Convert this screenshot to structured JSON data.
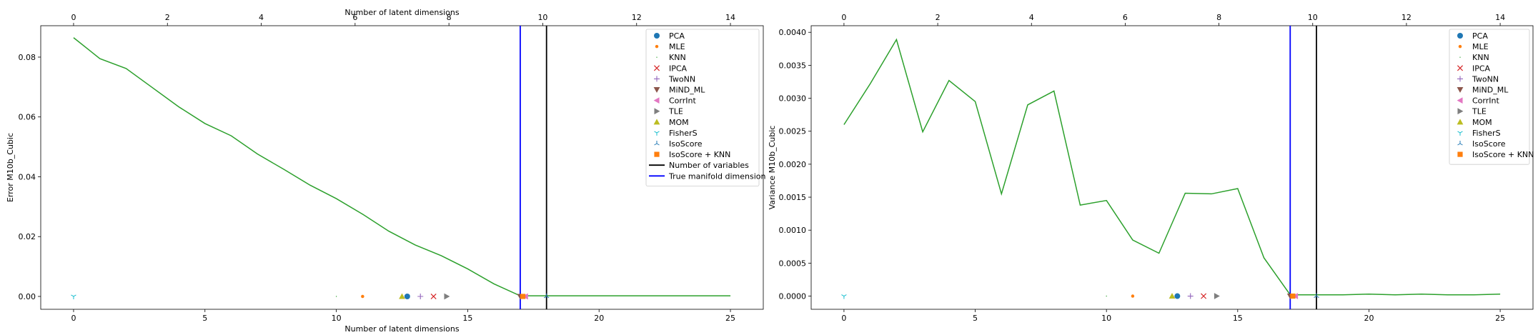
{
  "chart_data": [
    {
      "type": "line",
      "title": "",
      "xlabel": "Number of latent dimensions",
      "top_xlabel": "Number of latent dimensions",
      "ylabel": "Error M10b_Cubic",
      "xlim": [
        -1.25,
        26.25
      ],
      "ylim": [
        -0.0043,
        0.0905
      ],
      "top_xlim": [
        -0.7,
        14.7
      ],
      "x_ticks": [
        0,
        5,
        10,
        15,
        20,
        25
      ],
      "top_x_ticks": [
        0,
        2,
        4,
        6,
        8,
        10,
        12,
        14
      ],
      "y_ticks": [
        0.0,
        0.02,
        0.04,
        0.06,
        0.08
      ],
      "y_tick_labels": [
        "0.00",
        "0.02",
        "0.04",
        "0.06",
        "0.08"
      ],
      "series": [
        {
          "color": "#2ca02c",
          "x": [
            0,
            1,
            2,
            3,
            4,
            5,
            6,
            7,
            8,
            9,
            10,
            11,
            12,
            13,
            14,
            15,
            16,
            17,
            18,
            19,
            20,
            21,
            22,
            23,
            24,
            25
          ],
          "y": [
            0.0865,
            0.0795,
            0.0762,
            0.0698,
            0.0634,
            0.0578,
            0.0537,
            0.0476,
            0.0425,
            0.0372,
            0.0327,
            0.0275,
            0.0218,
            0.0172,
            0.0136,
            0.0092,
            0.0042,
            0.0002,
            0.0002,
            0.0002,
            0.0002,
            0.0002,
            0.0002,
            0.0002,
            0.0002,
            0.0002
          ]
        }
      ],
      "estimators": [
        {
          "name": "PCA",
          "x": 12.7,
          "marker": "circle",
          "color": "#1f77b4"
        },
        {
          "name": "MLE",
          "x": 11.0,
          "marker": "point",
          "color": "#ff7f0e"
        },
        {
          "name": "KNN",
          "x": 10.0,
          "marker": "pixel",
          "color": "#2ca02c"
        },
        {
          "name": "IPCA",
          "x": 13.7,
          "marker": "x",
          "color": "#d62728"
        },
        {
          "name": "TwoNN",
          "x": 13.2,
          "marker": "plus",
          "color": "#9467bd"
        },
        {
          "name": "MiND_ML",
          "x": 17.0,
          "marker": "triangle_down",
          "color": "#8c564b"
        },
        {
          "name": "CorrInt",
          "x": 17.2,
          "marker": "triangle_left",
          "color": "#e377c2"
        },
        {
          "name": "TLE",
          "x": 14.2,
          "marker": "triangle_right",
          "color": "#7f7f7f"
        },
        {
          "name": "MOM",
          "x": 12.5,
          "marker": "triangle_up",
          "color": "#bcbd22"
        },
        {
          "name": "FisherS",
          "x": 0.0,
          "marker": "tri_down",
          "color": "#17becf"
        },
        {
          "name": "IsoScore",
          "x": 18.0,
          "marker": "tri_up",
          "color": "#1f77b4"
        },
        {
          "name": "IsoScore + KNN",
          "x": 17.1,
          "marker": "square",
          "color": "#ff7f0e"
        }
      ],
      "vlines": [
        {
          "name": "Number of variables",
          "x": 18,
          "color": "#000000"
        },
        {
          "name": "True manifold dimension",
          "x": 17,
          "color": "#0000ff"
        }
      ],
      "legend": "top-right",
      "grid": false
    },
    {
      "type": "line",
      "title": "",
      "xlabel": "",
      "top_xlabel": "",
      "ylabel": "Variance M10b_Cubic",
      "xlim": [
        -1.25,
        26.25
      ],
      "ylim": [
        -0.0002,
        0.0041
      ],
      "top_xlim": [
        -0.7,
        14.7
      ],
      "x_ticks": [
        0,
        5,
        10,
        15,
        20,
        25
      ],
      "top_x_ticks": [
        0,
        2,
        4,
        6,
        8,
        10,
        12,
        14
      ],
      "y_ticks": [
        0.0,
        0.0005,
        0.001,
        0.0015,
        0.002,
        0.0025,
        0.003,
        0.0035,
        0.004
      ],
      "y_tick_labels": [
        "0.0000",
        "0.0005",
        "0.0010",
        "0.0015",
        "0.0020",
        "0.0025",
        "0.0030",
        "0.0035",
        "0.0040"
      ],
      "series": [
        {
          "color": "#2ca02c",
          "x": [
            0,
            1,
            2,
            3,
            4,
            5,
            6,
            7,
            8,
            9,
            10,
            11,
            12,
            13,
            14,
            15,
            16,
            17,
            18,
            19,
            20,
            21,
            22,
            23,
            24,
            25
          ],
          "y": [
            0.0026,
            0.00322,
            0.00389,
            0.00249,
            0.00327,
            0.00295,
            0.00155,
            0.0029,
            0.00311,
            0.00138,
            0.00145,
            0.00085,
            0.00065,
            0.00156,
            0.00155,
            0.00163,
            0.00058,
            2e-05,
            2e-05,
            2e-05,
            3e-05,
            2e-05,
            3e-05,
            2e-05,
            2e-05,
            3e-05
          ]
        }
      ],
      "estimators": [
        {
          "name": "PCA",
          "x": 12.7,
          "marker": "circle",
          "color": "#1f77b4"
        },
        {
          "name": "MLE",
          "x": 11.0,
          "marker": "point",
          "color": "#ff7f0e"
        },
        {
          "name": "KNN",
          "x": 10.0,
          "marker": "pixel",
          "color": "#2ca02c"
        },
        {
          "name": "IPCA",
          "x": 13.7,
          "marker": "x",
          "color": "#d62728"
        },
        {
          "name": "TwoNN",
          "x": 13.2,
          "marker": "plus",
          "color": "#9467bd"
        },
        {
          "name": "MiND_ML",
          "x": 17.0,
          "marker": "triangle_down",
          "color": "#8c564b"
        },
        {
          "name": "CorrInt",
          "x": 17.2,
          "marker": "triangle_left",
          "color": "#e377c2"
        },
        {
          "name": "TLE",
          "x": 14.2,
          "marker": "triangle_right",
          "color": "#7f7f7f"
        },
        {
          "name": "MOM",
          "x": 12.5,
          "marker": "triangle_up",
          "color": "#bcbd22"
        },
        {
          "name": "FisherS",
          "x": 0.0,
          "marker": "tri_down",
          "color": "#17becf"
        },
        {
          "name": "IsoScore",
          "x": 18.0,
          "marker": "tri_up",
          "color": "#1f77b4"
        },
        {
          "name": "IsoScore + KNN",
          "x": 17.1,
          "marker": "square",
          "color": "#ff7f0e"
        }
      ],
      "vlines": [
        {
          "x": 18,
          "color": "#000000"
        },
        {
          "x": 17,
          "color": "#0000ff"
        }
      ],
      "legend": "top-right",
      "grid": false
    }
  ]
}
